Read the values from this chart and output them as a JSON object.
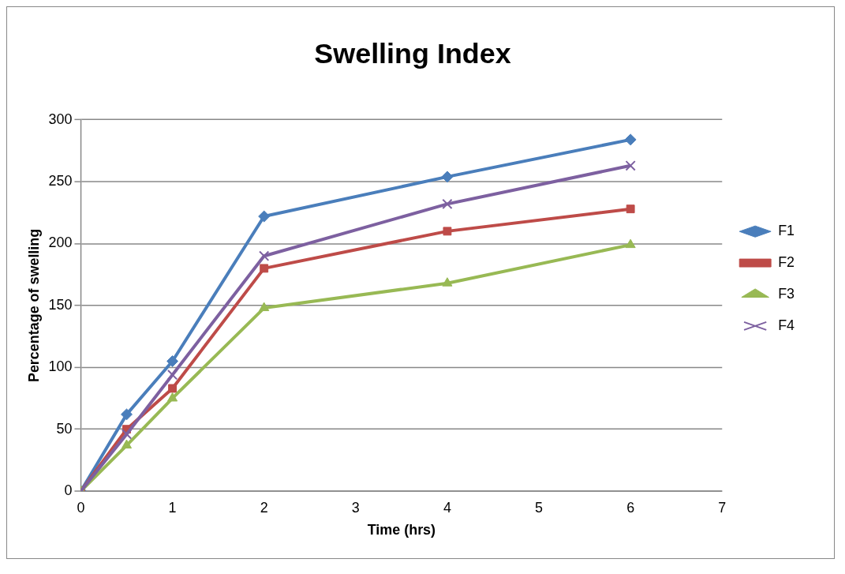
{
  "chart_data": {
    "type": "line",
    "title": "Swelling Index",
    "xlabel": "Time (hrs)",
    "ylabel": "Percentage of swelling",
    "x": [
      0,
      0.5,
      1,
      2,
      4,
      6
    ],
    "series": [
      {
        "name": "F1",
        "color": "#4a7ebb",
        "marker": "diamond",
        "values": [
          0,
          62,
          105,
          222,
          254,
          284
        ]
      },
      {
        "name": "F2",
        "color": "#be4b48",
        "marker": "square",
        "values": [
          0,
          50,
          83,
          180,
          210,
          228
        ]
      },
      {
        "name": "F3",
        "color": "#98b954",
        "marker": "triangle",
        "values": [
          0,
          37,
          75,
          148,
          168,
          199
        ]
      },
      {
        "name": "F4",
        "color": "#7d60a0",
        "marker": "cross",
        "values": [
          0,
          46,
          94,
          190,
          232,
          263
        ]
      }
    ],
    "xlim": [
      0,
      7
    ],
    "xticks": [
      0,
      1,
      2,
      3,
      4,
      5,
      6,
      7
    ],
    "ylim": [
      0,
      300
    ],
    "yticks": [
      0,
      50,
      100,
      150,
      200,
      250,
      300
    ],
    "grid": "y",
    "legend": "right",
    "line_style": "solid"
  }
}
